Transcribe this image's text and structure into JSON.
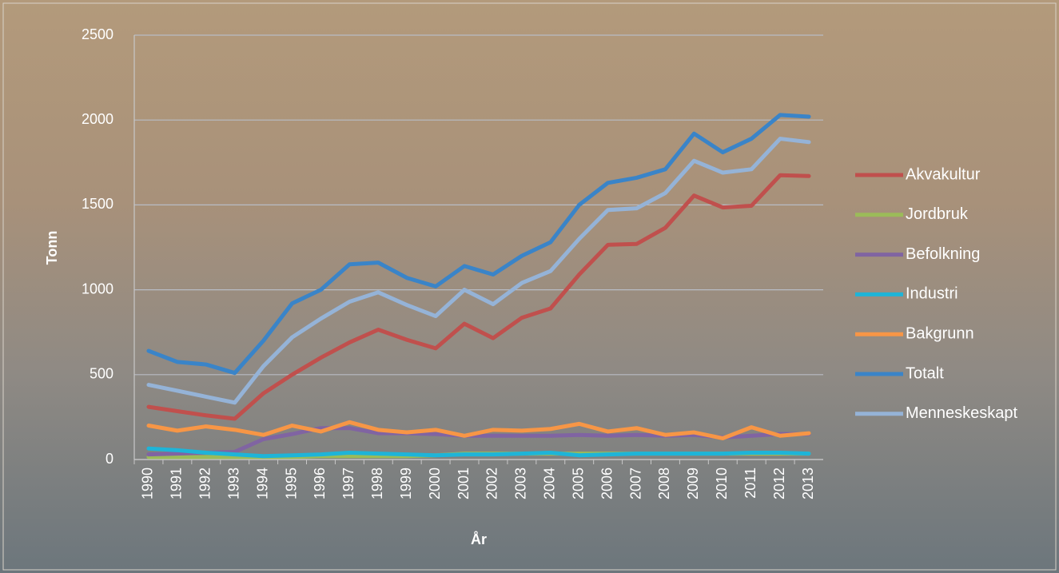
{
  "chart_data": {
    "type": "line",
    "x_label": "År",
    "y_label": "Tonn",
    "categories": [
      "1990",
      "1991",
      "1992",
      "1993",
      "1994",
      "1995",
      "1996",
      "1997",
      "1998",
      "1999",
      "2000",
      "2001",
      "2002",
      "2003",
      "2004",
      "2005",
      "2006",
      "2007",
      "2008",
      "2009",
      "2010",
      "2011",
      "2012",
      "2013"
    ],
    "ylim": [
      0,
      2500
    ],
    "yticks": [
      0,
      500,
      1000,
      1500,
      2000,
      2500
    ],
    "grid": true,
    "legend": "right",
    "series": [
      {
        "name": "Akvakultur",
        "color": "#c0504d",
        "values": [
          310,
          285,
          260,
          240,
          390,
          500,
          600,
          690,
          765,
          705,
          655,
          800,
          715,
          835,
          890,
          1090,
          1265,
          1270,
          1365,
          1555,
          1485,
          1495,
          1675,
          1670
        ]
      },
      {
        "name": "Jordbruk",
        "color": "#9bbb59",
        "values": [
          15,
          15,
          15,
          15,
          15,
          15,
          20,
          20,
          20,
          20,
          25,
          35,
          35,
          35,
          35,
          35,
          35,
          35,
          35,
          35,
          35,
          35,
          35,
          35
        ]
      },
      {
        "name": "Befolkning",
        "color": "#8064a2",
        "values": [
          30,
          35,
          40,
          45,
          120,
          150,
          185,
          185,
          155,
          155,
          150,
          140,
          140,
          140,
          140,
          145,
          140,
          145,
          140,
          145,
          130,
          140,
          150,
          150
        ]
      },
      {
        "name": "Industri",
        "color": "#1eb4d8",
        "values": [
          65,
          55,
          40,
          30,
          20,
          25,
          30,
          40,
          35,
          30,
          25,
          30,
          30,
          35,
          40,
          25,
          30,
          35,
          35,
          35,
          35,
          40,
          40,
          35
        ]
      },
      {
        "name": "Bakgrunn",
        "color": "#f79646",
        "values": [
          200,
          170,
          195,
          175,
          145,
          200,
          165,
          220,
          175,
          160,
          175,
          140,
          175,
          170,
          180,
          210,
          165,
          185,
          145,
          160,
          125,
          190,
          140,
          155
        ]
      },
      {
        "name": "Totalt",
        "color": "#3a84c8",
        "values": [
          640,
          575,
          560,
          510,
          700,
          920,
          1000,
          1150,
          1160,
          1070,
          1020,
          1140,
          1090,
          1200,
          1280,
          1500,
          1630,
          1660,
          1710,
          1920,
          1810,
          1890,
          2030,
          2020
        ]
      },
      {
        "name": "Menneskeskapt",
        "color": "#95b3d7",
        "values": [
          440,
          405,
          370,
          335,
          550,
          720,
          830,
          930,
          985,
          910,
          845,
          1000,
          915,
          1040,
          1110,
          1300,
          1470,
          1480,
          1570,
          1760,
          1690,
          1710,
          1890,
          1870
        ]
      }
    ]
  }
}
